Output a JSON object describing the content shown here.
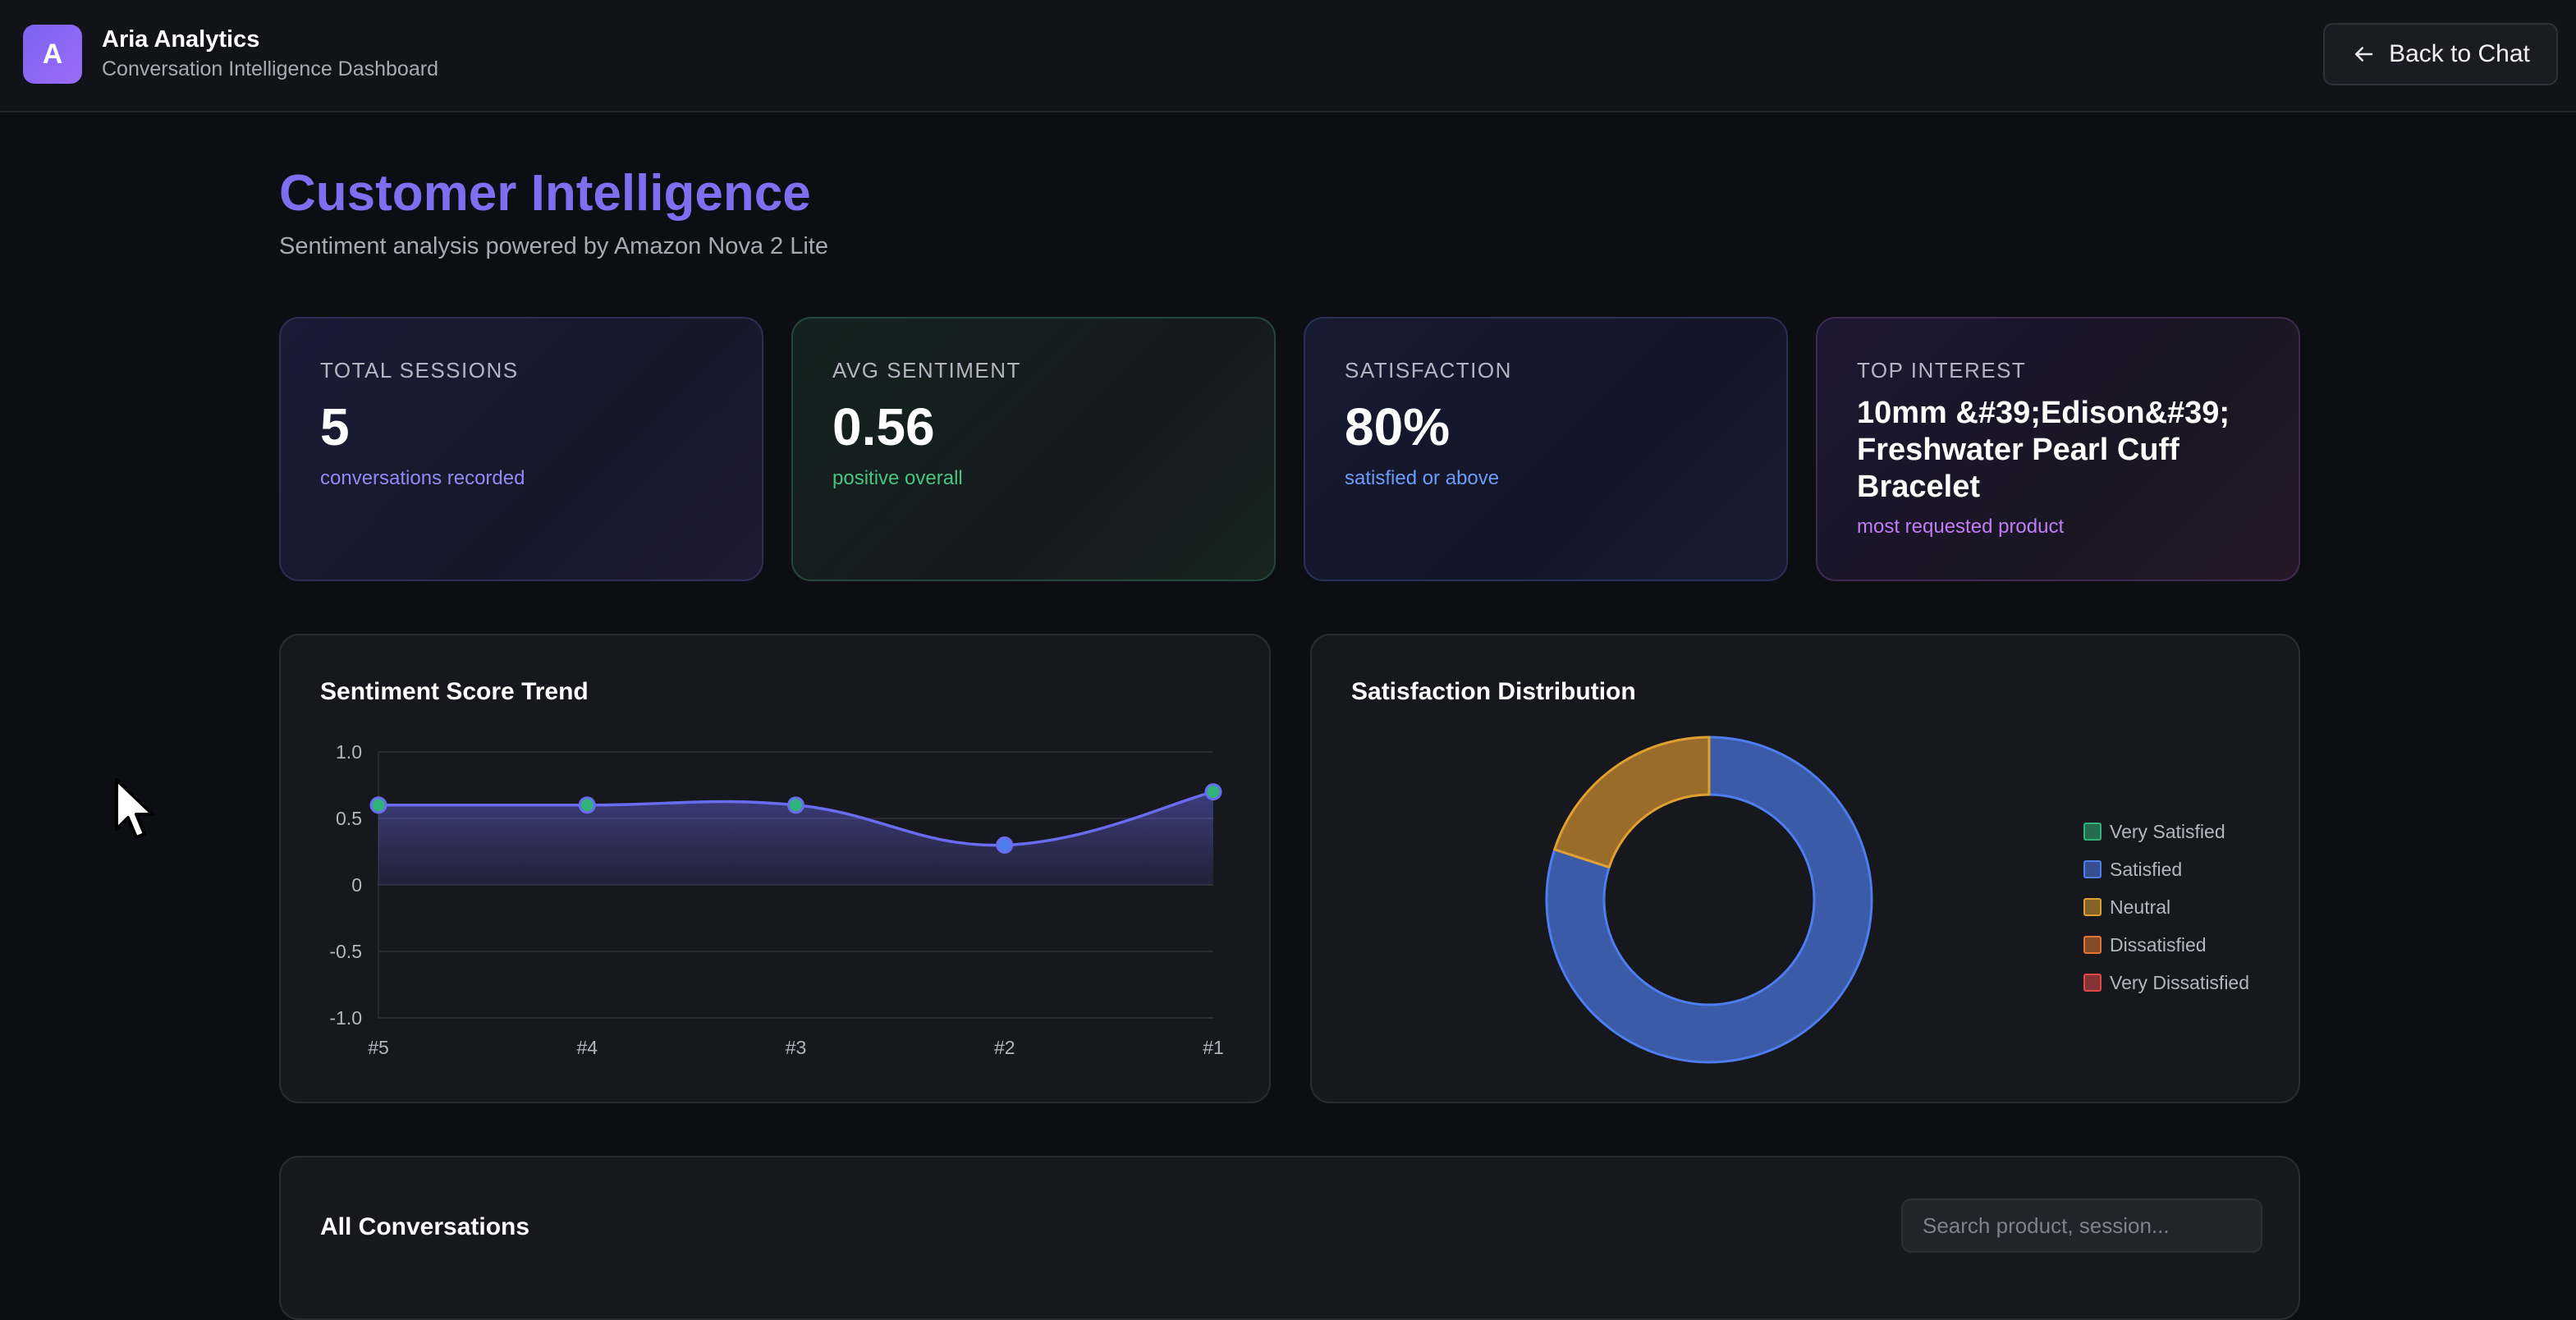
{
  "app": {
    "logo_letter": "A",
    "title": "Aria Analytics",
    "subtitle": "Conversation Intelligence Dashboard",
    "back_label": "Back to Chat"
  },
  "page": {
    "title": "Customer Intelligence",
    "subtitle": "Sentiment analysis powered by Amazon Nova 2 Lite"
  },
  "stats": [
    {
      "label": "TOTAL SESSIONS",
      "value": "5",
      "note": "conversations recorded"
    },
    {
      "label": "AVG SENTIMENT",
      "value": "0.56",
      "note": "positive overall"
    },
    {
      "label": "SATISFACTION",
      "value": "80%",
      "note": "satisfied or above"
    },
    {
      "label": "TOP INTEREST",
      "value": "10mm &#39;Edison&#39; Freshwater Pearl Cuff Bracelet",
      "note": "most requested product"
    }
  ],
  "colors": {
    "accent": "#7d6ff0",
    "line": "#6a6cf0",
    "very_satisfied": "#2fb37a",
    "satisfied": "#4e7df0",
    "neutral": "#e0a030",
    "dissatisfied": "#e2752f",
    "very_dissatisfied": "#e04848"
  },
  "chart_data": [
    {
      "type": "line",
      "title": "Sentiment Score Trend",
      "x": [
        "#5",
        "#4",
        "#3",
        "#2",
        "#1"
      ],
      "values": [
        0.6,
        0.6,
        0.6,
        0.3,
        0.7
      ],
      "ylim": [
        -1.0,
        1.0
      ],
      "yticks": [
        "1.0",
        "0.5",
        "0",
        "-0.5",
        "-1.0"
      ],
      "xlabel": "",
      "ylabel": "",
      "grid": true,
      "fill": true
    },
    {
      "type": "pie",
      "title": "Satisfaction Distribution",
      "donut": true,
      "labels": [
        "Very Satisfied",
        "Satisfied",
        "Neutral",
        "Dissatisfied",
        "Very Dissatisfied"
      ],
      "values": [
        0,
        4,
        1,
        0,
        0
      ],
      "legend": "right"
    }
  ],
  "conversations": {
    "title": "All Conversations",
    "search_placeholder": "Search product, session..."
  }
}
